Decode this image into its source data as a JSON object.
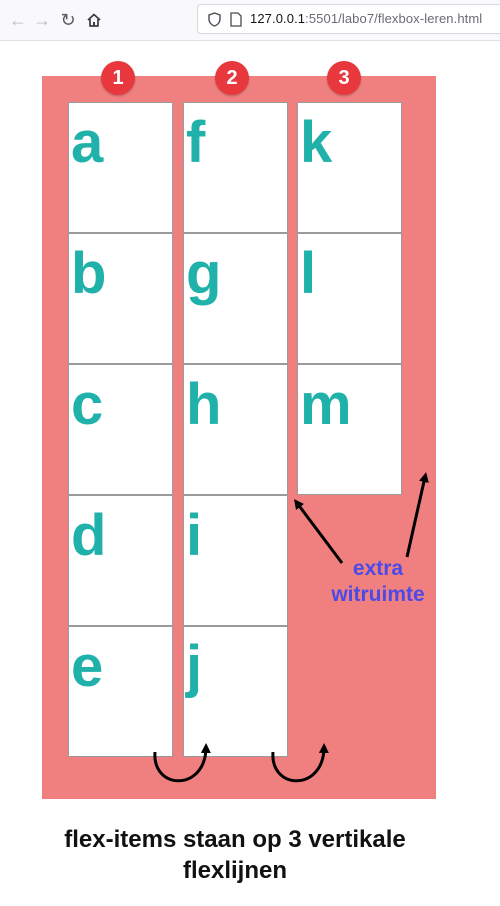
{
  "browser": {
    "url_host": "127.0.0.1",
    "url_rest": ":5501/labo7/flexbox-leren.html",
    "icons": {
      "back": "back-arrow-icon",
      "forward": "forward-arrow-icon",
      "reload": "reload-icon",
      "home": "home-icon",
      "shield": "shield-icon",
      "page": "page-icon"
    }
  },
  "demo": {
    "badges": [
      "1",
      "2",
      "3"
    ],
    "items": [
      "a",
      "b",
      "c",
      "d",
      "e",
      "f",
      "g",
      "h",
      "i",
      "j",
      "k",
      "l",
      "m"
    ],
    "note_line1": "extra",
    "note_line2": "witruimte",
    "caption_line1": "flex-items staan op 3 vertikale",
    "caption_line2": "flexlijnen"
  },
  "colors": {
    "container": "#f08080",
    "item_text": "#20b2aa",
    "badge": "#e8383d",
    "note": "#4a4ae8"
  }
}
